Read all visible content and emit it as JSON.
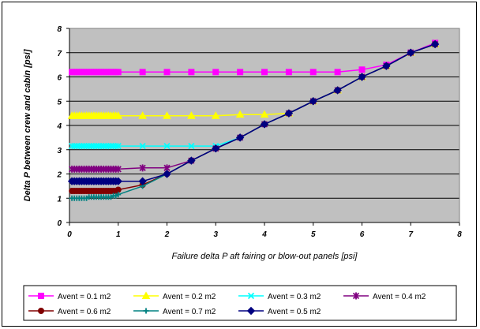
{
  "chart_data": {
    "type": "line",
    "title": "",
    "xlabel": "Failure delta P aft fairing or blow-out panels [psi]",
    "ylabel": "Delta P between crew and cabin [psi]",
    "xlim": [
      0,
      8
    ],
    "ylim": [
      0,
      8
    ],
    "x_ticks": [
      "0",
      "1",
      "2",
      "3",
      "4",
      "5",
      "6",
      "7",
      "8"
    ],
    "y_ticks": [
      "0",
      "1",
      "2",
      "3",
      "4",
      "5",
      "6",
      "7",
      "8"
    ],
    "grid": "horizontal",
    "legend_position": "bottom",
    "plot_background": "#c0c0c0",
    "series": [
      {
        "name": "Avent = 0.1 m2",
        "color": "#ff00ff",
        "marker": "square",
        "x": [
          0.05,
          0.1,
          0.15,
          0.2,
          0.25,
          0.3,
          0.35,
          0.4,
          0.45,
          0.5,
          0.55,
          0.6,
          0.65,
          0.7,
          0.75,
          0.8,
          0.85,
          0.9,
          0.95,
          1.0,
          1.5,
          2.0,
          2.5,
          3.0,
          3.5,
          4.0,
          4.5,
          5.0,
          5.5,
          6.0,
          6.5,
          7.0,
          7.5
        ],
        "y": [
          6.2,
          6.2,
          6.2,
          6.2,
          6.2,
          6.2,
          6.2,
          6.2,
          6.2,
          6.2,
          6.2,
          6.2,
          6.2,
          6.2,
          6.2,
          6.2,
          6.2,
          6.2,
          6.2,
          6.2,
          6.2,
          6.2,
          6.2,
          6.2,
          6.2,
          6.2,
          6.2,
          6.2,
          6.2,
          6.3,
          6.5,
          7.0,
          7.4
        ]
      },
      {
        "name": "Avent = 0.2 m2",
        "color": "#ffff00",
        "marker": "triangle",
        "x": [
          0.05,
          0.1,
          0.15,
          0.2,
          0.25,
          0.3,
          0.35,
          0.4,
          0.45,
          0.5,
          0.55,
          0.6,
          0.65,
          0.7,
          0.75,
          0.8,
          0.85,
          0.9,
          0.95,
          1.0,
          1.5,
          2.0,
          2.5,
          3.0,
          3.5,
          4.0,
          4.5,
          5.0,
          5.5,
          6.0,
          6.5,
          7.0,
          7.5
        ],
        "y": [
          4.4,
          4.4,
          4.4,
          4.4,
          4.4,
          4.4,
          4.4,
          4.4,
          4.4,
          4.4,
          4.4,
          4.4,
          4.4,
          4.4,
          4.4,
          4.4,
          4.4,
          4.4,
          4.4,
          4.4,
          4.4,
          4.4,
          4.4,
          4.4,
          4.45,
          4.45,
          4.5,
          5.0,
          5.45,
          6.0,
          6.45,
          7.0,
          7.35
        ]
      },
      {
        "name": "Avent = 0.3 m2",
        "color": "#00ffff",
        "marker": "x",
        "x": [
          0.05,
          0.1,
          0.15,
          0.2,
          0.25,
          0.3,
          0.35,
          0.4,
          0.45,
          0.5,
          0.55,
          0.6,
          0.65,
          0.7,
          0.75,
          0.8,
          0.85,
          0.9,
          0.95,
          1.0,
          1.5,
          2.0,
          2.5,
          3.0,
          3.5,
          4.0,
          4.5,
          5.0,
          5.5,
          6.0,
          6.5,
          7.0,
          7.5
        ],
        "y": [
          3.15,
          3.15,
          3.15,
          3.15,
          3.15,
          3.15,
          3.15,
          3.15,
          3.15,
          3.15,
          3.15,
          3.15,
          3.15,
          3.15,
          3.15,
          3.15,
          3.15,
          3.15,
          3.15,
          3.15,
          3.15,
          3.15,
          3.15,
          3.15,
          3.5,
          4.05,
          4.5,
          5.0,
          5.45,
          6.0,
          6.45,
          7.0,
          7.35
        ]
      },
      {
        "name": "Avent = 0.4 m2",
        "color": "#800080",
        "marker": "star",
        "x": [
          0.05,
          0.1,
          0.15,
          0.2,
          0.25,
          0.3,
          0.35,
          0.4,
          0.45,
          0.5,
          0.55,
          0.6,
          0.65,
          0.7,
          0.75,
          0.8,
          0.85,
          0.9,
          0.95,
          1.0,
          1.5,
          2.0,
          2.5,
          3.0,
          3.5,
          4.0,
          4.5,
          5.0,
          5.5,
          6.0,
          6.5,
          7.0,
          7.5
        ],
        "y": [
          2.2,
          2.2,
          2.2,
          2.2,
          2.2,
          2.2,
          2.2,
          2.2,
          2.2,
          2.2,
          2.2,
          2.2,
          2.2,
          2.2,
          2.2,
          2.2,
          2.2,
          2.2,
          2.2,
          2.2,
          2.25,
          2.25,
          2.55,
          3.05,
          3.5,
          4.05,
          4.5,
          5.0,
          5.45,
          6.0,
          6.45,
          7.0,
          7.35
        ]
      },
      {
        "name": "Avent = 0.6 m2",
        "color": "#800000",
        "marker": "circle",
        "x": [
          0.05,
          0.1,
          0.15,
          0.2,
          0.25,
          0.3,
          0.35,
          0.4,
          0.45,
          0.5,
          0.55,
          0.6,
          0.65,
          0.7,
          0.75,
          0.8,
          0.85,
          0.9,
          0.95,
          1.0,
          1.5,
          2.0,
          2.5,
          3.0,
          3.5,
          4.0,
          4.5,
          5.0,
          5.5,
          6.0,
          6.5,
          7.0,
          7.5
        ],
        "y": [
          1.3,
          1.3,
          1.3,
          1.3,
          1.3,
          1.3,
          1.3,
          1.3,
          1.3,
          1.3,
          1.3,
          1.3,
          1.3,
          1.3,
          1.3,
          1.3,
          1.3,
          1.3,
          1.3,
          1.35,
          1.55,
          2.0,
          2.55,
          3.05,
          3.5,
          4.05,
          4.5,
          5.0,
          5.45,
          6.0,
          6.45,
          7.0,
          7.35
        ]
      },
      {
        "name": "Avent = 0.7 m2",
        "color": "#008080",
        "marker": "plus",
        "x": [
          0.05,
          0.1,
          0.15,
          0.2,
          0.25,
          0.3,
          0.35,
          0.4,
          0.45,
          0.5,
          0.55,
          0.6,
          0.65,
          0.7,
          0.75,
          0.8,
          0.85,
          0.9,
          0.95,
          1.0,
          1.5,
          2.0,
          2.5,
          3.0,
          3.5,
          4.0,
          4.5,
          5.0,
          5.5,
          6.0,
          6.5,
          7.0,
          7.5
        ],
        "y": [
          1.0,
          1.0,
          1.0,
          1.0,
          1.0,
          1.0,
          1.0,
          1.05,
          1.05,
          1.05,
          1.05,
          1.05,
          1.05,
          1.05,
          1.05,
          1.05,
          1.05,
          1.1,
          1.1,
          1.15,
          1.5,
          2.0,
          2.55,
          3.05,
          3.5,
          4.05,
          4.5,
          5.0,
          5.45,
          6.0,
          6.45,
          7.0,
          7.35
        ]
      },
      {
        "name": "Avent = 0.5 m2",
        "color": "#000080",
        "marker": "diamond",
        "x": [
          0.05,
          0.1,
          0.15,
          0.2,
          0.25,
          0.3,
          0.35,
          0.4,
          0.45,
          0.5,
          0.55,
          0.6,
          0.65,
          0.7,
          0.75,
          0.8,
          0.85,
          0.9,
          0.95,
          1.0,
          1.5,
          2.0,
          2.5,
          3.0,
          3.5,
          4.0,
          4.5,
          5.0,
          5.5,
          6.0,
          6.5,
          7.0,
          7.5
        ],
        "y": [
          1.7,
          1.7,
          1.7,
          1.7,
          1.7,
          1.7,
          1.7,
          1.7,
          1.7,
          1.7,
          1.7,
          1.7,
          1.7,
          1.7,
          1.7,
          1.7,
          1.7,
          1.7,
          1.7,
          1.7,
          1.7,
          2.0,
          2.55,
          3.05,
          3.5,
          4.05,
          4.5,
          5.0,
          5.45,
          6.0,
          6.45,
          7.0,
          7.35
        ]
      }
    ]
  }
}
